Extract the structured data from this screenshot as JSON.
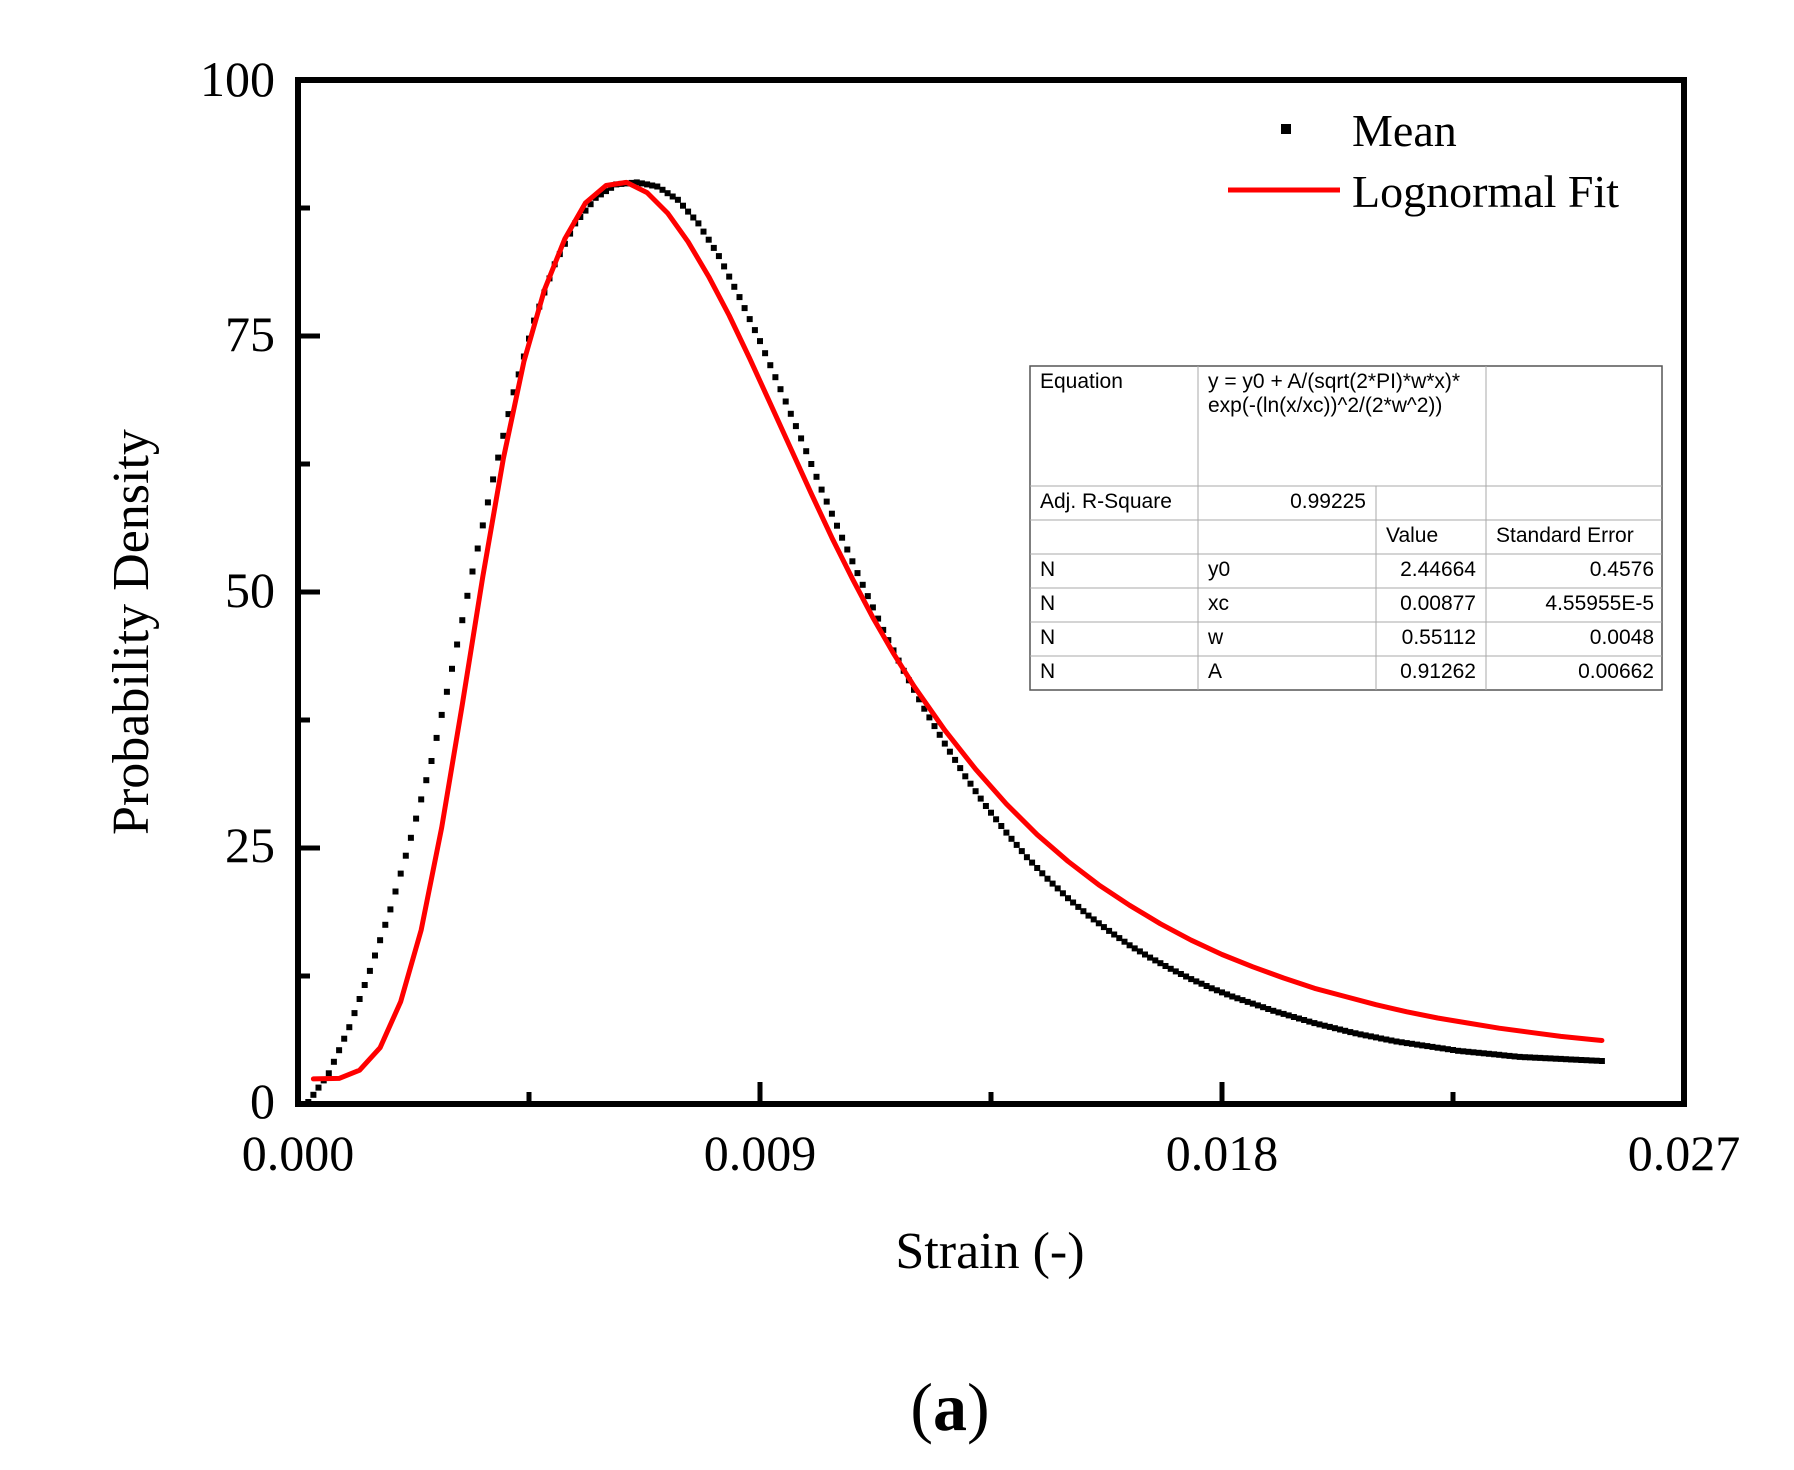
{
  "chart_data": {
    "type": "scatter",
    "xlabel": "Strain (-)",
    "ylabel": "Probability Density",
    "xlim": [
      0.0,
      0.027
    ],
    "ylim": [
      0,
      100
    ],
    "x_ticks": [
      "0.000",
      "0.009",
      "0.018",
      "0.027"
    ],
    "y_ticks": [
      "0",
      "25",
      "50",
      "75",
      "100"
    ],
    "x_major_values": [
      0.0,
      0.009,
      0.018,
      0.027
    ],
    "y_major_values": [
      0,
      25,
      50,
      75,
      100
    ],
    "grid": false,
    "legend_position": "top-right",
    "series": [
      {
        "name": "Mean",
        "style": "square-markers",
        "color": "#000000",
        "x": [
          0.0002,
          0.0006,
          0.001,
          0.0014,
          0.0018,
          0.0022,
          0.0026,
          0.003,
          0.0034,
          0.0038,
          0.0042,
          0.0046,
          0.005,
          0.0054,
          0.0058,
          0.0062,
          0.0066,
          0.007,
          0.0074,
          0.0078,
          0.0082,
          0.0086,
          0.009,
          0.0094,
          0.0098,
          0.0102,
          0.0106,
          0.011,
          0.0114,
          0.0118,
          0.0122,
          0.0126,
          0.013,
          0.0134,
          0.0138,
          0.0142,
          0.0146,
          0.015,
          0.0154,
          0.0158,
          0.0162,
          0.0166,
          0.017,
          0.0174,
          0.0178,
          0.0182,
          0.0186,
          0.019,
          0.0194,
          0.0198,
          0.0202,
          0.0206,
          0.021,
          0.0214,
          0.0218,
          0.0222,
          0.0226,
          0.023,
          0.0234,
          0.0238,
          0.0242,
          0.0246,
          0.025,
          0.0254
        ],
        "y": [
          0.2,
          3,
          7.5,
          13,
          19,
          26,
          33.5,
          42.5,
          52,
          61,
          69.5,
          76.5,
          82,
          86,
          88.5,
          89.8,
          90,
          89.6,
          88.3,
          86,
          82.8,
          78.8,
          74.5,
          69.8,
          65,
          60,
          55.3,
          50.7,
          46.3,
          42.3,
          38.6,
          35.2,
          32,
          29.1,
          26.5,
          24.1,
          22,
          20.1,
          18.4,
          16.9,
          15.5,
          14.3,
          13.2,
          12.2,
          11.3,
          10.5,
          9.8,
          9.1,
          8.5,
          7.9,
          7.4,
          6.9,
          6.5,
          6.1,
          5.8,
          5.5,
          5.2,
          5.0,
          4.8,
          4.6,
          4.5,
          4.4,
          4.3,
          4.2
        ]
      },
      {
        "name": "Lognormal Fit",
        "style": "line",
        "color": "#ff0000",
        "x": [
          0.0003,
          0.0008,
          0.0012,
          0.0016,
          0.002,
          0.0024,
          0.0028,
          0.0032,
          0.0036,
          0.004,
          0.0044,
          0.0048,
          0.0052,
          0.0056,
          0.006,
          0.0064,
          0.0068,
          0.0072,
          0.0076,
          0.008,
          0.0084,
          0.0088,
          0.0092,
          0.0096,
          0.01,
          0.0104,
          0.0108,
          0.0112,
          0.0116,
          0.012,
          0.0126,
          0.0132,
          0.0138,
          0.0144,
          0.015,
          0.0156,
          0.0162,
          0.0168,
          0.0174,
          0.018,
          0.0186,
          0.0192,
          0.0198,
          0.0204,
          0.021,
          0.0216,
          0.0222,
          0.0228,
          0.0234,
          0.024,
          0.0246,
          0.0252,
          0.0254
        ],
        "y": [
          2.45,
          2.5,
          3.3,
          5.5,
          10,
          17,
          27,
          39,
          51.5,
          63,
          72.5,
          79.5,
          84.5,
          88,
          89.7,
          90,
          89,
          87,
          84.2,
          80.8,
          77,
          72.8,
          68.4,
          64,
          59.6,
          55.3,
          51.3,
          47.5,
          44,
          40.8,
          36.5,
          32.7,
          29.3,
          26.3,
          23.7,
          21.4,
          19.4,
          17.6,
          16,
          14.6,
          13.4,
          12.3,
          11.3,
          10.5,
          9.7,
          9.0,
          8.4,
          7.9,
          7.4,
          7.0,
          6.6,
          6.3,
          6.2
        ]
      }
    ],
    "fit_table": {
      "equation_label": "Equation",
      "equation_line1": "y = y0 + A/(sqrt(2*PI)*w*x)*",
      "equation_line2": "exp(-(ln(x/xc))^2/(2*w^2))",
      "adj_r_square_label": "Adj. R-Square",
      "adj_r_square_value": "0.99225",
      "header_value": "Value",
      "header_error": "Standard Error",
      "rows": [
        {
          "group": "N",
          "param": "y0",
          "value": "2.44664",
          "error": "0.4576"
        },
        {
          "group": "N",
          "param": "xc",
          "value": "0.00877",
          "error": "4.55955E-5"
        },
        {
          "group": "N",
          "param": "w",
          "value": "0.55112",
          "error": "0.0048"
        },
        {
          "group": "N",
          "param": "A",
          "value": "0.91262",
          "error": "0.00662"
        }
      ]
    },
    "panel_label_letter": "a",
    "panel_label_open": "(",
    "panel_label_close": ")"
  }
}
